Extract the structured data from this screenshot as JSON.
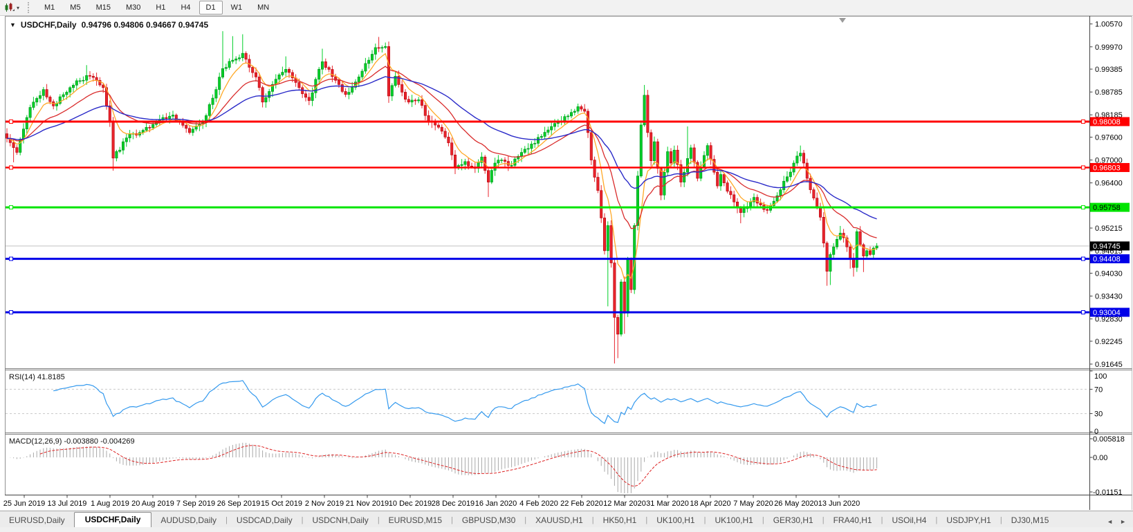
{
  "toolbar": {
    "timeframes": [
      "M1",
      "M5",
      "M15",
      "M30",
      "H1",
      "H4",
      "D1",
      "W1",
      "MN"
    ],
    "active_timeframe": "D1",
    "tool_icon": "charts-candlestick-icon",
    "menu_caret": "▾"
  },
  "chart": {
    "title_symbol": "USDCHF,Daily",
    "quote_line": "0.94796 0.94806 0.94667 0.94745",
    "menu_triangle": "▼"
  },
  "indicators": {
    "rsi_label": "RSI(14) 41.8185",
    "macd_label": "MACD(12,26,9) -0.003880 -0.004269"
  },
  "chart_data": {
    "type": "candlestick",
    "symbol": "USDCHF",
    "timeframe": "Daily",
    "last_quote": {
      "open": 0.94796,
      "high": 0.94806,
      "low": 0.94667,
      "close": 0.94745
    },
    "price_axis_ticks": [
      "1.00570",
      "0.99970",
      "0.99385",
      "0.98785",
      "0.98185",
      "0.97600",
      "0.97000",
      "0.96400",
      "0.95215",
      "0.94615",
      "0.94030",
      "0.93430",
      "0.92830",
      "0.92245",
      "0.91645"
    ],
    "date_axis_ticks": [
      "25 Jun 2019",
      "13 Jul 2019",
      "1 Aug 2019",
      "20 Aug 2019",
      "7 Sep 2019",
      "26 Sep 2019",
      "15 Oct 2019",
      "2 Nov 2019",
      "21 Nov 2019",
      "10 Dec 2019",
      "28 Dec 2019",
      "16 Jan 2020",
      "4 Feb 2020",
      "22 Feb 2020",
      "12 Mar 2020",
      "31 Mar 2020",
      "18 Apr 2020",
      "7 May 2020",
      "26 May 2020",
      "13 Jun 2020"
    ],
    "horizontal_levels": [
      {
        "price": 0.98008,
        "label": "0.98008",
        "color": "#ff0000",
        "text_color": "#ffffff",
        "width": 3
      },
      {
        "price": 0.96803,
        "label": "0.96803",
        "color": "#ff0000",
        "text_color": "#ffffff",
        "width": 2.5
      },
      {
        "price": 0.95758,
        "label": "0.95758",
        "color": "#00e400",
        "text_color": "#000000",
        "width": 3
      },
      {
        "price": 0.94408,
        "label": "0.94408",
        "color": "#0000e8",
        "text_color": "#ffffff",
        "width": 3
      },
      {
        "price": 0.93004,
        "label": "0.93004",
        "color": "#0000e8",
        "text_color": "#ffffff",
        "width": 3
      }
    ],
    "current_price": {
      "value": 0.94745,
      "label": "0.94745",
      "line_color": "#c0c0c0",
      "badge_color": "#000000",
      "text_color": "#ffffff"
    },
    "candles": {
      "count": 263,
      "up_fill": "#00cf28",
      "up_border": "#008f1a",
      "down_fill": "#e8242c",
      "down_border": "#b5000a",
      "close_anchors": [
        [
          0,
          0.9757
        ],
        [
          3,
          0.972
        ],
        [
          7,
          0.9838
        ],
        [
          11,
          0.9885
        ],
        [
          14,
          0.9842
        ],
        [
          18,
          0.9878
        ],
        [
          21,
          0.9908
        ],
        [
          25,
          0.992
        ],
        [
          29,
          0.989
        ],
        [
          31,
          0.98
        ],
        [
          32,
          0.9705
        ],
        [
          36,
          0.9758
        ],
        [
          41,
          0.9778
        ],
        [
          45,
          0.9802
        ],
        [
          50,
          0.9818
        ],
        [
          55,
          0.9772
        ],
        [
          59,
          0.9798
        ],
        [
          63,
          0.9885
        ],
        [
          65,
          0.994
        ],
        [
          68,
          0.9962
        ],
        [
          71,
          0.998
        ],
        [
          75,
          0.9918
        ],
        [
          77,
          0.9852
        ],
        [
          81,
          0.9912
        ],
        [
          84,
          0.9938
        ],
        [
          88,
          0.989
        ],
        [
          91,
          0.9856
        ],
        [
          95,
          0.9958
        ],
        [
          100,
          0.9898
        ],
        [
          102,
          0.9872
        ],
        [
          106,
          0.9918
        ],
        [
          109,
          0.9962
        ],
        [
          111,
          0.9995
        ],
        [
          114,
          0.9998
        ],
        [
          115,
          0.9868
        ],
        [
          117,
          0.992
        ],
        [
          119,
          0.9878
        ],
        [
          121,
          0.9852
        ],
        [
          124,
          0.9858
        ],
        [
          127,
          0.9802
        ],
        [
          130,
          0.9786
        ],
        [
          133,
          0.9745
        ],
        [
          135,
          0.9682
        ],
        [
          138,
          0.9696
        ],
        [
          141,
          0.9678
        ],
        [
          143,
          0.9708
        ],
        [
          145,
          0.9642
        ],
        [
          147,
          0.9692
        ],
        [
          149,
          0.97
        ],
        [
          152,
          0.9686
        ],
        [
          155,
          0.972
        ],
        [
          158,
          0.9742
        ],
        [
          161,
          0.9762
        ],
        [
          164,
          0.9788
        ],
        [
          167,
          0.9802
        ],
        [
          170,
          0.9825
        ],
        [
          172,
          0.984
        ],
        [
          174,
          0.9828
        ],
        [
          175,
          0.9772
        ],
        [
          176,
          0.97
        ],
        [
          178,
          0.962
        ],
        [
          179,
          0.9548
        ],
        [
          180,
          0.9462
        ],
        [
          181,
          0.9528
        ],
        [
          182,
          0.943
        ],
        [
          183,
          0.9287
        ],
        [
          184,
          0.9243
        ],
        [
          185,
          0.938
        ],
        [
          186,
          0.9298
        ],
        [
          187,
          0.944
        ],
        [
          188,
          0.936
        ],
        [
          189,
          0.9528
        ],
        [
          190,
          0.9658
        ],
        [
          191,
          0.9792
        ],
        [
          192,
          0.987
        ],
        [
          193,
          0.9772
        ],
        [
          194,
          0.9698
        ],
        [
          195,
          0.9748
        ],
        [
          196,
          0.9678
        ],
        [
          197,
          0.9608
        ],
        [
          198,
          0.9668
        ],
        [
          199,
          0.9722
        ],
        [
          200,
          0.9692
        ],
        [
          201,
          0.9726
        ],
        [
          202,
          0.9688
        ],
        [
          203,
          0.9642
        ],
        [
          204,
          0.9668
        ],
        [
          205,
          0.9704
        ],
        [
          206,
          0.9732
        ],
        [
          207,
          0.9694
        ],
        [
          208,
          0.9652
        ],
        [
          209,
          0.9682
        ],
        [
          210,
          0.9712
        ],
        [
          211,
          0.9738
        ],
        [
          212,
          0.9702
        ],
        [
          213,
          0.9668
        ],
        [
          214,
          0.9632
        ],
        [
          215,
          0.9662
        ],
        [
          216,
          0.964
        ],
        [
          217,
          0.9618
        ],
        [
          219,
          0.959
        ],
        [
          221,
          0.9562
        ],
        [
          223,
          0.9578
        ],
        [
          225,
          0.9602
        ],
        [
          227,
          0.9582
        ],
        [
          229,
          0.9568
        ],
        [
          231,
          0.9592
        ],
        [
          233,
          0.9622
        ],
        [
          235,
          0.9656
        ],
        [
          237,
          0.9692
        ],
        [
          239,
          0.9718
        ],
        [
          240,
          0.9692
        ],
        [
          241,
          0.9652
        ],
        [
          242,
          0.9622
        ],
        [
          243,
          0.96
        ],
        [
          244,
          0.9576
        ],
        [
          245,
          0.955
        ],
        [
          246,
          0.9482
        ],
        [
          247,
          0.9408
        ],
        [
          248,
          0.9452
        ],
        [
          249,
          0.9472
        ],
        [
          250,
          0.9492
        ],
        [
          251,
          0.9508
        ],
        [
          252,
          0.9496
        ],
        [
          253,
          0.9472
        ],
        [
          254,
          0.9442
        ],
        [
          255,
          0.9418
        ],
        [
          256,
          0.9512
        ],
        [
          257,
          0.9478
        ],
        [
          258,
          0.9448
        ],
        [
          259,
          0.9462
        ],
        [
          260,
          0.9452
        ],
        [
          261,
          0.9469
        ],
        [
          262,
          0.94745
        ]
      ],
      "wick_lows": {
        "2": 0.9694,
        "32": 0.9672,
        "77": 0.9838,
        "115": 0.985,
        "135": 0.9663,
        "145": 0.9603,
        "181": 0.9316,
        "183": 0.9166,
        "184": 0.918,
        "186": 0.9244,
        "197": 0.9595,
        "221": 0.9534,
        "247": 0.937,
        "248": 0.9372,
        "254": 0.9415,
        "255": 0.9394,
        "258": 0.9406
      },
      "wick_highs": {
        "24": 0.9949,
        "65": 1.0038,
        "68": 1.0025,
        "71": 1.003,
        "84": 0.9972,
        "95": 0.9992,
        "112": 1.0023,
        "172": 0.9848,
        "192": 0.9897,
        "205": 0.9788,
        "239": 0.9738,
        "251": 0.9527,
        "256": 0.9518
      }
    },
    "moving_averages": [
      {
        "period": 7,
        "color": "#ffa826",
        "width": 1.3
      },
      {
        "period": 20,
        "color": "#d92b2b",
        "width": 1.3
      },
      {
        "period": 45,
        "color": "#2a2ac8",
        "width": 1.4
      }
    ],
    "rsi": {
      "period": 14,
      "value": 41.8185,
      "color": "#3399ee",
      "levels": [
        70,
        30
      ],
      "axis_ticks": [
        "100",
        "70",
        "30",
        "0"
      ]
    },
    "macd": {
      "fast": 12,
      "slow": 26,
      "signal": 9,
      "value": -0.00388,
      "signal_value": -0.004269,
      "histogram_color": "#a8a8a8",
      "signal_color": "#dd2222",
      "axis_ticks": [
        "0.005818",
        "0.00",
        "-0.01151"
      ]
    }
  },
  "bottom_tabs": {
    "items": [
      "EURUSD,Daily",
      "USDCHF,Daily",
      "AUDUSD,Daily",
      "USDCAD,Daily",
      "USDCNH,Daily",
      "EURUSD,M15",
      "GBPUSD,M30",
      "XAUUSD,H1",
      "HK50,H1",
      "UK100,H1",
      "UK100,H1",
      "GER30,H1",
      "FRA40,H1",
      "USOil,H4",
      "USDJPY,H1",
      "DJ30,M15"
    ],
    "active_index": 1,
    "scroll_left": "◄",
    "scroll_right": "►"
  }
}
